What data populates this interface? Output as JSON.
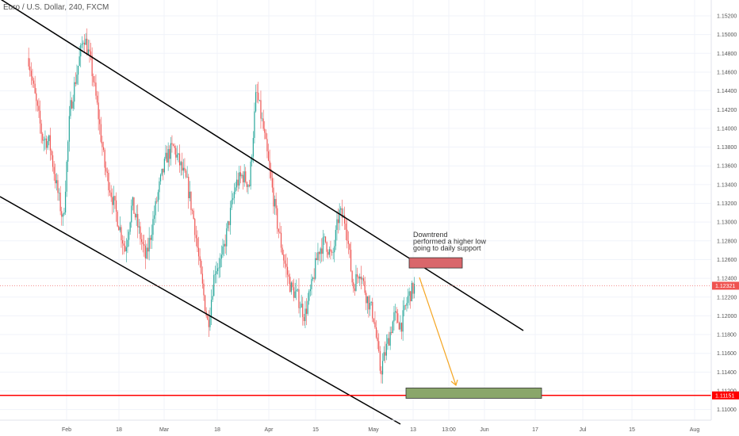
{
  "symbol": {
    "title": "Euro / U.S. Dollar, 240, FXCM"
  },
  "colors": {
    "up": "#26a69a",
    "down": "#ef5350",
    "support": "#ff0000",
    "channel": "#000000",
    "arrow": "#f5a623",
    "resistance_box": "#d9666b",
    "target_box": "#8aa66a",
    "price_tag": "#ef5350",
    "grid": "#f0f3fa",
    "axis_text": "#555555"
  },
  "annotation": {
    "lines": [
      "Downtrend",
      "performed a higher low",
      "going to daily support"
    ]
  },
  "chart_data": {
    "type": "candlestick",
    "y_axis": {
      "side": "right",
      "ticks": [
        "1.15200",
        "1.15000",
        "1.14800",
        "1.14600",
        "1.14400",
        "1.14200",
        "1.14000",
        "1.13800",
        "1.13600",
        "1.13400",
        "1.13200",
        "1.13000",
        "1.12800",
        "1.12600",
        "1.12400",
        "1.12200",
        "1.12000",
        "1.11800",
        "1.11600",
        "1.11400",
        "1.11200",
        "1.11000"
      ],
      "range": [
        1.1092,
        1.1528
      ]
    },
    "x_axis": {
      "ticks": [
        "Feb",
        "18",
        "Mar",
        "18",
        "Apr",
        "15",
        "May",
        "13",
        "13:00",
        "Jun",
        "17",
        "Jul",
        "15",
        "Aug"
      ]
    },
    "current_price": "1.12321",
    "support_level": "1.11151",
    "support_value": 1.11151,
    "resistance_zone": [
      1.1251,
      1.1262
    ],
    "target_zone": [
      1.1112,
      1.1123
    ],
    "channel_upper": [
      [
        "Jan 21",
        1.153
      ],
      [
        "Jun 10",
        1.1187
      ]
    ],
    "channel_lower": [
      [
        "Jan 21",
        1.133
      ],
      [
        "May 20",
        1.1083
      ]
    ],
    "projection_arrow": [
      [
        "May 13",
        1.124
      ],
      [
        "May 18",
        1.113
      ]
    ],
    "price_path": [
      [
        "Jan 21",
        1.1475
      ],
      [
        "Jan 23",
        1.143
      ],
      [
        "Jan 25",
        1.139
      ],
      [
        "Jan 27",
        1.1385
      ],
      [
        "Jan 29",
        1.134
      ],
      [
        "Jan 31",
        1.13
      ],
      [
        "Feb 2",
        1.142
      ],
      [
        "Feb 4",
        1.146
      ],
      [
        "Feb 6",
        1.15
      ],
      [
        "Feb 8",
        1.147
      ],
      [
        "Feb 10",
        1.142
      ],
      [
        "Feb 12",
        1.136
      ],
      [
        "Feb 14",
        1.133
      ],
      [
        "Feb 16",
        1.13
      ],
      [
        "Feb 18",
        1.127
      ],
      [
        "Feb 20",
        1.132
      ],
      [
        "Feb 22",
        1.129
      ],
      [
        "Feb 24",
        1.126
      ],
      [
        "Feb 26",
        1.13
      ],
      [
        "Feb 28",
        1.134
      ],
      [
        "Mar 2",
        1.137
      ],
      [
        "Mar 4",
        1.138
      ],
      [
        "Mar 6",
        1.136
      ],
      [
        "Mar 8",
        1.134
      ],
      [
        "Mar 10",
        1.13
      ],
      [
        "Mar 12",
        1.124
      ],
      [
        "Mar 14",
        1.119
      ],
      [
        "Mar 16",
        1.125
      ],
      [
        "Mar 18",
        1.126
      ],
      [
        "Mar 20",
        1.13
      ],
      [
        "Mar 22",
        1.134
      ],
      [
        "Mar 24",
        1.135
      ],
      [
        "Mar 26",
        1.134
      ],
      [
        "Mar 28",
        1.144
      ],
      [
        "Mar 30",
        1.14
      ],
      [
        "Apr 1",
        1.135
      ],
      [
        "Apr 3",
        1.13
      ],
      [
        "Apr 5",
        1.126
      ],
      [
        "Apr 7",
        1.123
      ],
      [
        "Apr 9",
        1.122
      ],
      [
        "Apr 11",
        1.12
      ],
      [
        "Apr 13",
        1.123
      ],
      [
        "Apr 15",
        1.127
      ],
      [
        "Apr 17",
        1.128
      ],
      [
        "Apr 19",
        1.126
      ],
      [
        "Apr 21",
        1.131
      ],
      [
        "Apr 23",
        1.13
      ],
      [
        "Apr 25",
        1.123
      ],
      [
        "Apr 27",
        1.125
      ],
      [
        "Apr 29",
        1.122
      ],
      [
        "May 1",
        1.12
      ],
      [
        "May 3",
        1.114
      ],
      [
        "May 5",
        1.117
      ],
      [
        "May 7",
        1.12
      ],
      [
        "May 9",
        1.119
      ],
      [
        "May 11",
        1.122
      ],
      [
        "May 13",
        1.1232
      ]
    ]
  }
}
